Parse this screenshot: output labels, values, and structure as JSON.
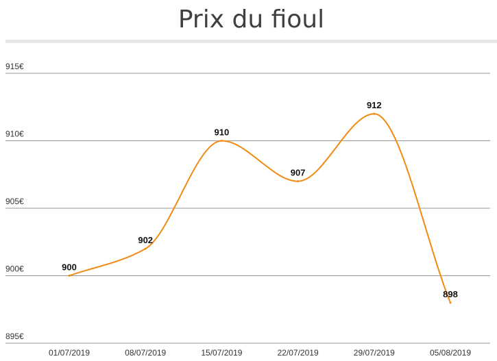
{
  "chart_data": {
    "type": "line",
    "title": "Prix du fioul",
    "categories": [
      "01/07/2019",
      "08/07/2019",
      "15/07/2019",
      "22/07/2019",
      "29/07/2019",
      "05/08/2019"
    ],
    "series": [
      {
        "values": [
          900,
          902,
          910,
          907,
          912,
          898
        ]
      }
    ],
    "data_labels": [
      "900",
      "902",
      "910",
      "907",
      "912",
      "898"
    ],
    "y_ticks": [
      {
        "value": 895,
        "label": "895€"
      },
      {
        "value": 900,
        "label": "900€"
      },
      {
        "value": 905,
        "label": "905€"
      },
      {
        "value": 910,
        "label": "910€"
      },
      {
        "value": 915,
        "label": "915€"
      }
    ],
    "ylim": [
      895,
      915
    ],
    "grid": true,
    "smooth": true,
    "colors": {
      "line": "#f28a12",
      "grid": "#999999"
    }
  }
}
